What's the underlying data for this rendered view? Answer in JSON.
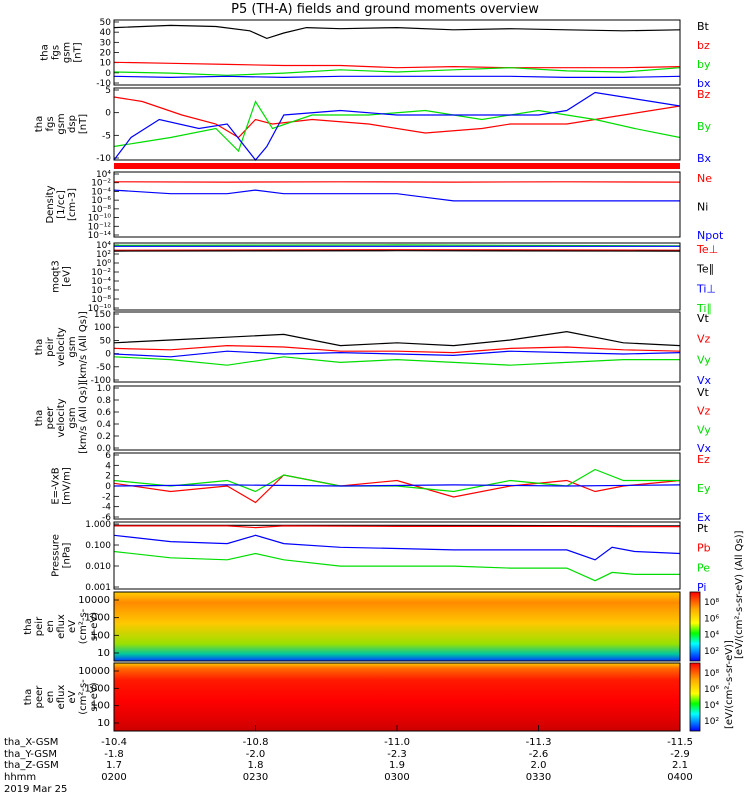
{
  "title": "P5 (TH-A) fields and ground moments overview",
  "colors": {
    "black": "#000000",
    "red": "#ff0000",
    "green": "#00dd00",
    "blue": "#0000ff",
    "frame": "#000000"
  },
  "chart_data": [
    {
      "type": "line",
      "ylabel": [
        "tha",
        "fgs",
        "gsm",
        "[nT]"
      ],
      "yticks": [
        "50",
        "40",
        "30",
        "20",
        "10",
        "0",
        "-10"
      ],
      "ylim": [
        -10,
        50
      ],
      "legend": [
        "Bt",
        "bz",
        "by",
        "bx"
      ],
      "series": [
        {
          "name": "Bt",
          "color": "#000000",
          "x": [
            0,
            10,
            18,
            24,
            27,
            30,
            34,
            40,
            50,
            60,
            70,
            80,
            90,
            100
          ],
          "y": [
            43,
            45,
            44,
            40,
            33,
            38,
            43,
            42,
            43,
            41,
            42,
            41,
            40,
            41
          ]
        },
        {
          "name": "bz",
          "color": "#ff0000",
          "x": [
            0,
            10,
            20,
            30,
            40,
            50,
            60,
            70,
            80,
            90,
            100
          ],
          "y": [
            11,
            10,
            9,
            8,
            8,
            6,
            7,
            6,
            6,
            6,
            7
          ]
        },
        {
          "name": "by",
          "color": "#00dd00",
          "x": [
            0,
            10,
            20,
            30,
            40,
            50,
            60,
            70,
            80,
            90,
            100
          ],
          "y": [
            2,
            1,
            -1,
            1,
            4,
            2,
            4,
            6,
            3,
            2,
            6
          ]
        },
        {
          "name": "bx",
          "color": "#0000ff",
          "x": [
            0,
            10,
            20,
            30,
            40,
            50,
            60,
            70,
            80,
            90,
            100
          ],
          "y": [
            -2,
            -3,
            -2,
            -3,
            -2,
            -2,
            -2,
            -2,
            -3,
            -3,
            -2
          ]
        }
      ]
    },
    {
      "type": "line",
      "ylabel": [
        "tha",
        "fgs",
        "gsm",
        "dsp",
        "[nT]"
      ],
      "yticks": [
        "5",
        "0",
        "-5",
        "-10"
      ],
      "ylim": [
        -11,
        5
      ],
      "legend": [
        "Bz",
        "By",
        "Bx"
      ],
      "series": [
        {
          "name": "Bz",
          "color": "#ff0000",
          "x": [
            0,
            5,
            12,
            18,
            22,
            25,
            28,
            35,
            45,
            55,
            65,
            70,
            80,
            90,
            100
          ],
          "y": [
            3,
            2,
            -1,
            -3,
            -6,
            -2,
            -3,
            -2,
            -3,
            -5,
            -4,
            -3,
            -3,
            -1,
            1
          ]
        },
        {
          "name": "By",
          "color": "#00dd00",
          "x": [
            0,
            5,
            10,
            18,
            22,
            25,
            28,
            35,
            45,
            55,
            65,
            75,
            85,
            92,
            100
          ],
          "y": [
            -8,
            -7,
            -6,
            -4,
            -9,
            2,
            -4,
            -1,
            -1,
            0,
            -2,
            0,
            -2,
            -4,
            -6
          ]
        },
        {
          "name": "Bx",
          "color": "#0000ff",
          "x": [
            0,
            3,
            8,
            15,
            20,
            25,
            27,
            30,
            40,
            50,
            60,
            68,
            75,
            80,
            85,
            90,
            95,
            100
          ],
          "y": [
            -11,
            -6,
            -2,
            -4,
            -3,
            -11,
            -8,
            -1,
            0,
            -1,
            -1,
            -1,
            -1,
            0,
            4,
            3,
            2,
            1
          ]
        }
      ]
    },
    {
      "type": "line",
      "ylabel": [
        "Density",
        "[1/cc]",
        "[cm-3]"
      ],
      "yticks": [
        "10⁴",
        "10⁻²",
        "10⁻⁴",
        "10⁻⁶",
        "10⁻⁸",
        "10⁻¹⁰",
        "10⁻¹²",
        "10⁻¹⁴"
      ],
      "ylim": [
        -14,
        4
      ],
      "legend": [
        "Ne",
        "Ni",
        "Npot"
      ],
      "series": [
        {
          "name": "Ne",
          "color": "#ff0000",
          "x": [
            0,
            20,
            40,
            60,
            80,
            100
          ],
          "y": [
            1.3,
            1.2,
            1.3,
            1.2,
            1.3,
            1.2
          ]
        },
        {
          "name": "Npot",
          "color": "#0000ff",
          "x": [
            0,
            10,
            20,
            25,
            30,
            40,
            50,
            55,
            60,
            70,
            80,
            90,
            100
          ],
          "y": [
            -1,
            -2,
            -2,
            -1,
            -2,
            -2,
            -2,
            -3,
            -4,
            -4,
            -4,
            -4,
            -4
          ]
        }
      ]
    },
    {
      "type": "line",
      "ylabel": [
        "moqt3",
        "[eV]"
      ],
      "yticks": [
        "10⁴",
        "10²",
        "10⁰",
        "10⁻²",
        "10⁻⁴",
        "10⁻⁶",
        "10⁻⁸",
        "10⁻¹⁰"
      ],
      "ylim": [
        -10,
        4
      ],
      "legend": [
        "Te⊥",
        "Te∥",
        "Ti⊥",
        "Ti∥"
      ],
      "series": [
        {
          "name": "Ti∥",
          "color": "#00dd00",
          "x": [
            0,
            50,
            100
          ],
          "y": [
            3.5,
            3.6,
            3.4
          ]
        },
        {
          "name": "Ti⊥",
          "color": "#0000ff",
          "x": [
            0,
            50,
            100
          ],
          "y": [
            3.3,
            3.3,
            3.3
          ]
        },
        {
          "name": "Te⊥",
          "color": "#ff0000",
          "x": [
            0,
            50,
            100
          ],
          "y": [
            2.5,
            2.6,
            2.5
          ]
        },
        {
          "name": "Te∥",
          "color": "#000000",
          "x": [
            0,
            50,
            100
          ],
          "y": [
            2.3,
            2.4,
            2.3
          ]
        }
      ]
    },
    {
      "type": "line",
      "ylabel": [
        "tha",
        "peir",
        "velocity",
        "gsm",
        "[km/s (All Qs)]"
      ],
      "yticks": [
        "150",
        "100",
        "50",
        "0",
        "-50",
        "-100"
      ],
      "ylim": [
        -100,
        150
      ],
      "legend": [
        "Vt",
        "Vz",
        "Vy",
        "Vx"
      ],
      "series": [
        {
          "name": "Vt",
          "color": "#000000",
          "x": [
            0,
            10,
            20,
            30,
            40,
            50,
            60,
            70,
            80,
            90,
            100
          ],
          "y": [
            40,
            50,
            60,
            70,
            30,
            40,
            30,
            50,
            80,
            40,
            30
          ]
        },
        {
          "name": "Vz",
          "color": "#ff0000",
          "x": [
            0,
            10,
            20,
            30,
            40,
            50,
            60,
            70,
            80,
            90,
            100
          ],
          "y": [
            20,
            15,
            30,
            25,
            10,
            10,
            5,
            20,
            25,
            15,
            10
          ]
        },
        {
          "name": "Vy",
          "color": "#00dd00",
          "x": [
            0,
            10,
            20,
            30,
            40,
            50,
            60,
            70,
            80,
            90,
            100
          ],
          "y": [
            -10,
            -20,
            -40,
            -10,
            -30,
            -20,
            -30,
            -40,
            -30,
            -20,
            -20
          ]
        },
        {
          "name": "Vx",
          "color": "#0000ff",
          "x": [
            0,
            10,
            20,
            30,
            40,
            50,
            60,
            70,
            80,
            90,
            100
          ],
          "y": [
            0,
            -10,
            10,
            0,
            5,
            0,
            -5,
            10,
            5,
            0,
            5
          ]
        }
      ]
    },
    {
      "type": "line",
      "ylabel": [
        "tha",
        "peer",
        "velocity",
        "gsm",
        "[km/s (All Qs)]"
      ],
      "yticks": [
        "1.0",
        "0.8",
        "0.6",
        "0.4",
        "0.2",
        "0.0"
      ],
      "ylim": [
        0,
        1
      ],
      "legend": [
        "Vt",
        "Vz",
        "Vy",
        "Vx"
      ],
      "series": []
    },
    {
      "type": "line",
      "ylabel": [
        "E=-VxB",
        "[mV/m]"
      ],
      "yticks": [
        "6",
        "4",
        "2",
        "0",
        "-2",
        "-4",
        "-6"
      ],
      "ylim": [
        -6,
        6
      ],
      "legend": [
        "Ez",
        "Ey",
        "Ex"
      ],
      "series": [
        {
          "name": "Ez",
          "color": "#ff0000",
          "x": [
            0,
            10,
            20,
            25,
            30,
            40,
            50,
            60,
            70,
            80,
            85,
            90,
            100
          ],
          "y": [
            0.5,
            -1,
            0,
            -3,
            2,
            0,
            1,
            -2,
            0,
            1,
            -1,
            0,
            1
          ]
        },
        {
          "name": "Ey",
          "color": "#00dd00",
          "x": [
            0,
            10,
            20,
            25,
            30,
            40,
            50,
            60,
            70,
            80,
            85,
            90,
            100
          ],
          "y": [
            1,
            0,
            1,
            -1,
            2,
            0,
            0,
            -1,
            1,
            0,
            3,
            1,
            1
          ]
        },
        {
          "name": "Ex",
          "color": "#0000ff",
          "x": [
            0,
            20,
            40,
            60,
            80,
            100
          ],
          "y": [
            0,
            0.2,
            0,
            0.2,
            0,
            0.2
          ]
        }
      ]
    },
    {
      "type": "line",
      "ylabel": [
        "Pressure",
        "[nPa]"
      ],
      "yticks": [
        "1.000",
        "0.100",
        "0.010",
        "0.001"
      ],
      "ylim": [
        0.0008,
        1.3
      ],
      "log_y": true,
      "legend": [
        "Pt",
        "Pb",
        "Pe",
        "Pi"
      ],
      "series": [
        {
          "name": "Pt",
          "color": "#000000",
          "x": [
            0,
            50,
            100
          ],
          "y": [
            0.9,
            0.9,
            0.85
          ]
        },
        {
          "name": "Pb",
          "color": "#ff0000",
          "x": [
            0,
            20,
            25,
            30,
            50,
            70,
            80,
            90,
            100
          ],
          "y": [
            0.85,
            0.85,
            0.7,
            0.85,
            0.8,
            0.8,
            0.8,
            0.78,
            0.78
          ]
        },
        {
          "name": "Pi",
          "color": "#0000ff",
          "x": [
            0,
            10,
            20,
            25,
            30,
            40,
            50,
            60,
            70,
            80,
            85,
            88,
            92,
            100
          ],
          "y": [
            0.3,
            0.15,
            0.12,
            0.3,
            0.12,
            0.08,
            0.07,
            0.06,
            0.06,
            0.06,
            0.02,
            0.08,
            0.05,
            0.04
          ]
        },
        {
          "name": "Pe",
          "color": "#00dd00",
          "x": [
            0,
            10,
            20,
            25,
            30,
            40,
            50,
            60,
            70,
            80,
            85,
            88,
            92,
            100
          ],
          "y": [
            0.05,
            0.025,
            0.02,
            0.04,
            0.02,
            0.01,
            0.01,
            0.01,
            0.008,
            0.008,
            0.002,
            0.005,
            0.004,
            0.004
          ]
        }
      ]
    },
    {
      "type": "heatmap",
      "ylabel": [
        "tha",
        "peir",
        "en",
        "eflux",
        "eV",
        "(cm²-s-",
        "sr-eV)"
      ],
      "yticks": [
        "10000",
        "1000",
        "100",
        "10"
      ],
      "colorbar_ticks": [
        "10⁸",
        "10⁶",
        "10⁴",
        "10²"
      ],
      "colorbar_label": "[eV/(cm²-s-sr-eV) (All Qs)]"
    },
    {
      "type": "heatmap",
      "ylabel": [
        "tha",
        "peer",
        "en",
        "eflux",
        "eV",
        "(cm²-s-",
        "sr-eV)"
      ],
      "yticks": [
        "10000",
        "1000",
        "100",
        "10"
      ],
      "colorbar_ticks": [
        "10⁸",
        "10⁶",
        "10⁴",
        "10²"
      ],
      "colorbar_label": "[eV/(cm²-s-sr-eV)]"
    }
  ],
  "xaxis": {
    "row_labels": [
      "tha_X-GSM",
      "tha_Y-GSM",
      "tha_Z-GSM",
      "hhmm",
      "2019 Mar 25"
    ],
    "ticks": [
      {
        "x": "-10.4",
        "y": "-1.8",
        "z": "1.7",
        "t": "0200"
      },
      {
        "x": "-10.8",
        "y": "-2.0",
        "z": "1.8",
        "t": "0230"
      },
      {
        "x": "-11.0",
        "y": "-2.3",
        "z": "1.9",
        "t": "0300"
      },
      {
        "x": "-11.3",
        "y": "-2.6",
        "z": "2.0",
        "t": "0330"
      },
      {
        "x": "-11.5",
        "y": "-2.9",
        "z": "2.1",
        "t": "0400"
      }
    ]
  }
}
